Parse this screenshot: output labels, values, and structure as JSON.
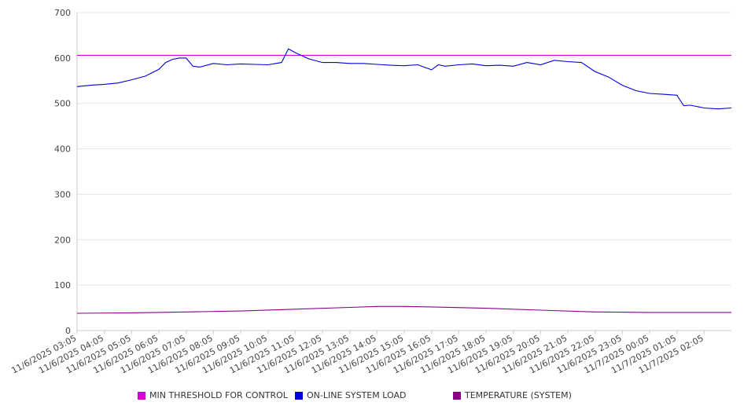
{
  "chart_data": {
    "type": "line",
    "title": "",
    "xlabel": "",
    "ylabel": "",
    "ylim": [
      0,
      700
    ],
    "y_ticks": [
      "0",
      "100",
      "200",
      "300",
      "400",
      "500",
      "600",
      "700"
    ],
    "x_tick_labels": [
      "11/6/2025 03:05",
      "11/6/2025 04:05",
      "11/6/2025 05:05",
      "11/6/2025 06:05",
      "11/6/2025 07:05",
      "11/6/2025 08:05",
      "11/6/2025 09:05",
      "11/6/2025 10:05",
      "11/6/2025 11:05",
      "11/6/2025 12:05",
      "11/6/2025 13:05",
      "11/6/2025 14:05",
      "11/6/2025 15:05",
      "11/6/2025 16:05",
      "11/6/2025 17:05",
      "11/6/2025 18:05",
      "11/6/2025 19:05",
      "11/6/2025 20:05",
      "11/6/2025 21:05",
      "11/6/2025 22:05",
      "11/6/2025 23:05",
      "11/7/2025 00:05",
      "11/7/2025 01:05",
      "11/7/2025 02:05"
    ],
    "x_range": [
      "11/6/2025 03:05",
      "11/7/2025 03:05"
    ],
    "grid": true,
    "legend_position": "bottom",
    "series": [
      {
        "name": "MIN THRESHOLD FOR CONTROL",
        "color": "#d400d4",
        "x": [
          "11/6/2025 03:05",
          "11/7/2025 03:05"
        ],
        "values": [
          606,
          606
        ]
      },
      {
        "name": "ON-LINE SYSTEM LOAD",
        "color": "#0000dd",
        "x": [
          "11/6/2025 03:05",
          "11/6/2025 03:35",
          "11/6/2025 04:05",
          "11/6/2025 04:35",
          "11/6/2025 05:05",
          "11/6/2025 05:35",
          "11/6/2025 06:05",
          "11/6/2025 06:20",
          "11/6/2025 06:35",
          "11/6/2025 06:50",
          "11/6/2025 07:05",
          "11/6/2025 07:20",
          "11/6/2025 07:35",
          "11/6/2025 08:05",
          "11/6/2025 08:35",
          "11/6/2025 09:05",
          "11/6/2025 09:35",
          "11/6/2025 10:05",
          "11/6/2025 10:35",
          "11/6/2025 10:50",
          "11/6/2025 11:05",
          "11/6/2025 11:20",
          "11/6/2025 11:35",
          "11/6/2025 12:05",
          "11/6/2025 12:35",
          "11/6/2025 13:05",
          "11/6/2025 13:35",
          "11/6/2025 14:05",
          "11/6/2025 14:35",
          "11/6/2025 15:05",
          "11/6/2025 15:35",
          "11/6/2025 16:05",
          "11/6/2025 16:20",
          "11/6/2025 16:35",
          "11/6/2025 17:05",
          "11/6/2025 17:35",
          "11/6/2025 18:05",
          "11/6/2025 18:35",
          "11/6/2025 19:05",
          "11/6/2025 19:35",
          "11/6/2025 20:05",
          "11/6/2025 20:35",
          "11/6/2025 21:05",
          "11/6/2025 21:35",
          "11/6/2025 22:05",
          "11/6/2025 22:35",
          "11/6/2025 23:05",
          "11/6/2025 23:35",
          "11/7/2025 00:05",
          "11/7/2025 00:35",
          "11/7/2025 01:05",
          "11/7/2025 01:20",
          "11/7/2025 01:35",
          "11/7/2025 02:05",
          "11/7/2025 02:35",
          "11/7/2025 03:05"
        ],
        "values": [
          537,
          540,
          542,
          545,
          552,
          560,
          575,
          590,
          597,
          600,
          600,
          582,
          580,
          588,
          585,
          587,
          586,
          585,
          590,
          620,
          612,
          605,
          598,
          590,
          590,
          588,
          588,
          586,
          584,
          583,
          585,
          574,
          585,
          582,
          585,
          587,
          583,
          584,
          582,
          590,
          585,
          595,
          592,
          590,
          570,
          558,
          540,
          528,
          522,
          520,
          518,
          495,
          496,
          490,
          488,
          490
        ]
      },
      {
        "name": "TEMPERATURE (SYSTEM)",
        "color": "#880088",
        "x": [
          "11/6/2025 03:05",
          "11/6/2025 05:05",
          "11/6/2025 07:05",
          "11/6/2025 09:05",
          "11/6/2025 11:05",
          "11/6/2025 13:05",
          "11/6/2025 14:05",
          "11/6/2025 15:05",
          "11/6/2025 16:05",
          "11/6/2025 18:05",
          "11/6/2025 20:05",
          "11/6/2025 22:05",
          "11/7/2025 00:05",
          "11/7/2025 02:05",
          "11/7/2025 03:05"
        ],
        "values": [
          38,
          39,
          41,
          43,
          47,
          51,
          53,
          53,
          52,
          49,
          45,
          41,
          40,
          40,
          40
        ]
      }
    ]
  }
}
